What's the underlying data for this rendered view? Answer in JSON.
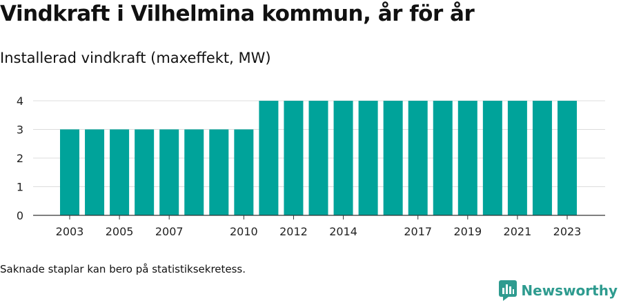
{
  "title": "Vindkraft i Vilhelmina kommun, år för år",
  "subtitle": "Installerad vindkraft (maxeffekt, MW)",
  "footnote": "Saknade staplar kan bero på statistiksekretess.",
  "brand": {
    "name": "Newsworthy",
    "color": "#2e9b8f",
    "icon": "newsworthy-logo-icon"
  },
  "chart_data": {
    "type": "bar",
    "color": "#00a39a",
    "x": [
      2003,
      2004,
      2005,
      2006,
      2007,
      2008,
      2009,
      2010,
      2011,
      2012,
      2013,
      2014,
      2015,
      2016,
      2017,
      2018,
      2019,
      2020,
      2021,
      2022,
      2023
    ],
    "values": [
      3,
      3,
      3,
      3,
      3,
      3,
      3,
      3,
      4,
      4,
      4,
      4,
      4,
      4,
      4,
      4,
      4,
      4,
      4,
      4,
      4
    ],
    "x_tick_labels": [
      "2003",
      "2005",
      "2007",
      "2010",
      "2012",
      "2014",
      "2017",
      "2019",
      "2021",
      "2023"
    ],
    "y_ticks": [
      "0",
      "1",
      "2",
      "3",
      "4"
    ],
    "ylim": [
      0,
      4
    ],
    "grid": true
  }
}
